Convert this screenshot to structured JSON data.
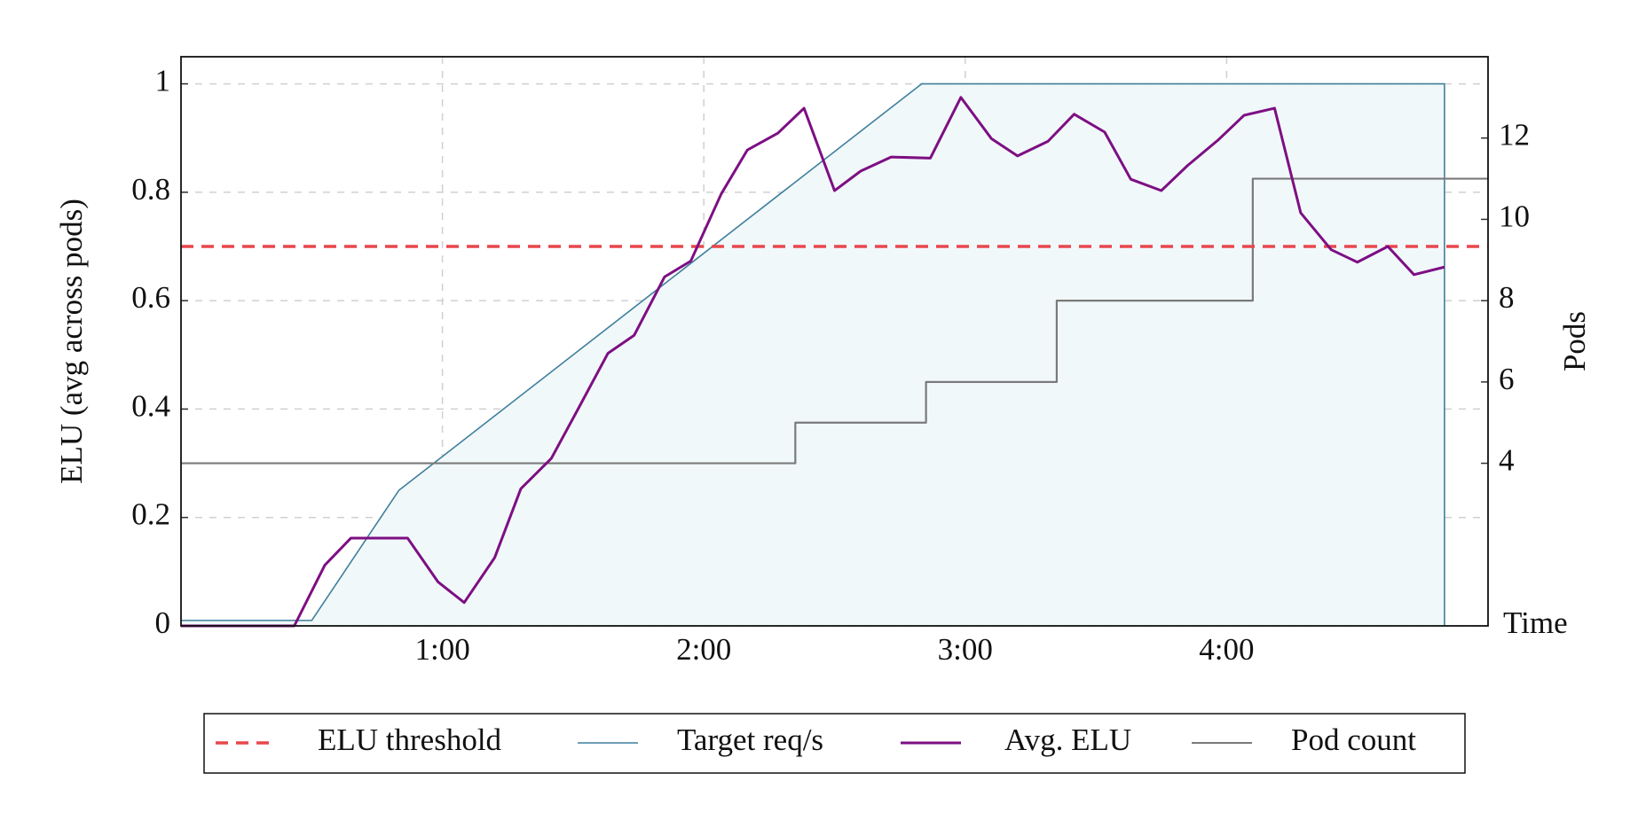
{
  "chart_data": {
    "type": "line",
    "y_label": "ELU (avg across pods)",
    "y2_label": "Pods",
    "x_label": "Time",
    "xlim": [
      0,
      300
    ],
    "xticks": [
      {
        "value": 60,
        "label": "1:00"
      },
      {
        "value": 120,
        "label": "2:00"
      },
      {
        "value": 180,
        "label": "3:00"
      },
      {
        "value": 240,
        "label": "4:00"
      }
    ],
    "ylim": [
      0,
      1.05
    ],
    "yticks": [
      0,
      0.2,
      0.4,
      0.6,
      0.8,
      1
    ],
    "y2lim": [
      0,
      14
    ],
    "y2ticks": [
      4,
      6,
      8,
      10,
      12
    ],
    "grid": true,
    "legend": "bottom",
    "series": [
      {
        "name": "ELU threshold",
        "color": "#e8474c",
        "dashed": true,
        "x": [
          0,
          300
        ],
        "values": [
          0.7,
          0.7
        ]
      },
      {
        "name": "Target req/s",
        "color": "#3f7f9c",
        "fill": "#f1f8fa",
        "x": [
          0,
          30,
          50,
          170,
          290,
          290
        ],
        "values": [
          0.01,
          0.01,
          0.25,
          1,
          1,
          0
        ]
      },
      {
        "name": "Avg. ELU",
        "color": "#7d0f83",
        "x": [
          0,
          26,
          33,
          39,
          52,
          59,
          65,
          72,
          78,
          85,
          91,
          98,
          104,
          111,
          117,
          124,
          130,
          137,
          143,
          150,
          156,
          163,
          172,
          179,
          186,
          192,
          199,
          205,
          212,
          218,
          225,
          231,
          238,
          244,
          251,
          257,
          264,
          270,
          277,
          283,
          290
        ],
        "values": [
          0,
          0,
          0.112,
          0.162,
          0.162,
          0.081,
          0.043,
          0.126,
          0.253,
          0.309,
          0.398,
          0.503,
          0.536,
          0.644,
          0.673,
          0.797,
          0.878,
          0.909,
          0.955,
          0.803,
          0.839,
          0.865,
          0.863,
          0.975,
          0.899,
          0.867,
          0.894,
          0.944,
          0.911,
          0.824,
          0.803,
          0.849,
          0.896,
          0.942,
          0.955,
          0.762,
          0.694,
          0.671,
          0.7,
          0.648,
          0.662
        ]
      },
      {
        "name": "Pod count",
        "color": "#7a7a7a",
        "axis": "y2",
        "x": [
          0,
          141,
          141,
          171,
          171,
          201,
          201,
          246,
          246,
          300
        ],
        "values": [
          4,
          4,
          5,
          5,
          6,
          6,
          8,
          8,
          11,
          11
        ]
      }
    ]
  }
}
